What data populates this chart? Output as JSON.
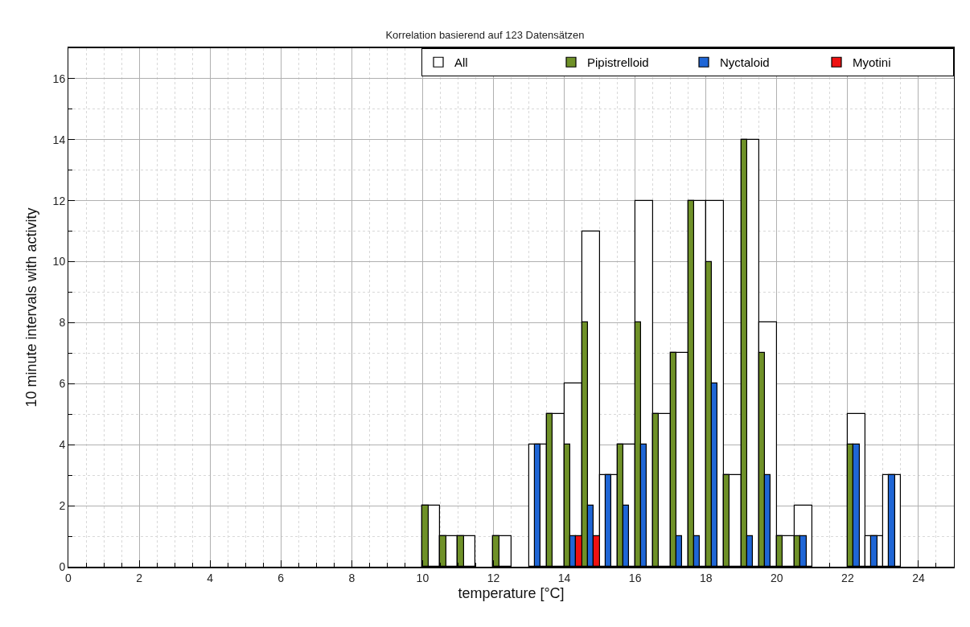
{
  "chart_data": {
    "type": "bar",
    "title": "Korrelation basierend auf 123 Datensätzen",
    "xlabel": "temperature [°C]",
    "ylabel": "10 minute intervals with activity",
    "x": [
      10.25,
      10.75,
      11.25,
      11.75,
      12.25,
      12.75,
      13.25,
      13.75,
      14.25,
      14.75,
      15.25,
      15.75,
      16.25,
      16.75,
      17.25,
      17.75,
      18.25,
      18.75,
      19.25,
      19.75,
      20.25,
      20.75,
      21.25,
      21.75,
      22.25,
      22.75,
      23.25
    ],
    "series": [
      {
        "name": "All",
        "color": "#ffffff",
        "values": [
          2,
          1,
          1,
          null,
          1,
          null,
          4,
          5,
          6,
          11,
          3,
          4,
          12,
          5,
          7,
          12,
          12,
          3,
          14,
          8,
          1,
          2,
          null,
          null,
          5,
          1,
          3
        ]
      },
      {
        "name": "Pipistrelloid",
        "color": "#6f9128",
        "values": [
          2,
          1,
          1,
          null,
          1,
          null,
          null,
          5,
          4,
          8,
          null,
          4,
          8,
          5,
          7,
          12,
          10,
          3,
          14,
          7,
          1,
          1,
          null,
          null,
          4,
          null,
          null
        ]
      },
      {
        "name": "Nyctaloid",
        "color": "#1f66d6",
        "values": [
          null,
          null,
          null,
          null,
          null,
          null,
          4,
          null,
          1,
          2,
          3,
          2,
          4,
          null,
          1,
          1,
          6,
          null,
          1,
          3,
          null,
          1,
          null,
          null,
          4,
          1,
          3
        ]
      },
      {
        "name": "Myotini",
        "color": "#ee1111",
        "values": [
          null,
          null,
          null,
          null,
          null,
          null,
          null,
          null,
          1,
          1,
          null,
          null,
          null,
          null,
          null,
          null,
          null,
          null,
          null,
          null,
          null,
          null,
          null,
          null,
          null,
          null,
          null
        ]
      }
    ],
    "xlim": [
      0,
      25
    ],
    "xticks": [
      0,
      2,
      4,
      6,
      8,
      10,
      12,
      14,
      16,
      18,
      20,
      22,
      24
    ],
    "ylim": [
      0,
      17
    ],
    "yticks": [
      0,
      2,
      4,
      6,
      8,
      10,
      12,
      14,
      16
    ],
    "grid": true,
    "legend": "top right"
  }
}
